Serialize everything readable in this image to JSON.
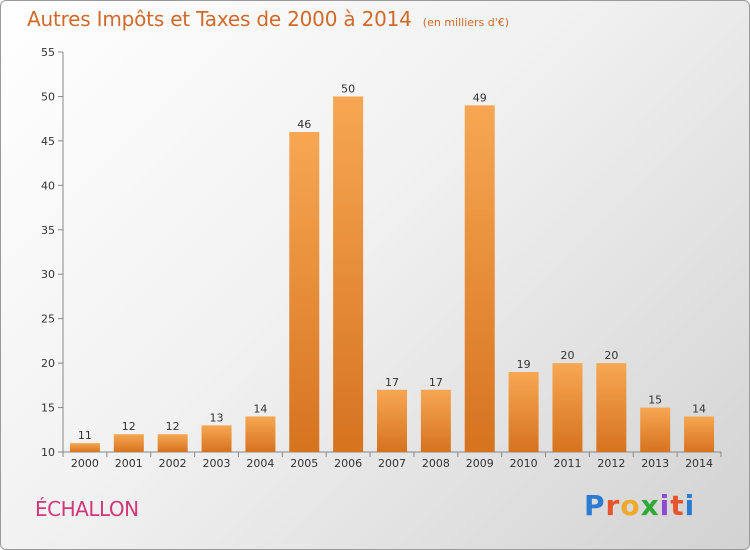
{
  "title": "Autres Impôts et Taxes de 2000 à 2014",
  "subtitle": "(en milliers d'€)",
  "commune": "ÉCHALLON",
  "logo": "Proxiti",
  "colors": {
    "title": "#d06a2a",
    "commune": "#d1387a",
    "bar_light": "#f7a753",
    "bar_dark": "#d6731f"
  },
  "chart_data": {
    "type": "bar",
    "title": "Autres Impôts et Taxes de 2000 à 2014",
    "subtitle": "(en milliers d'€)",
    "xlabel": "",
    "ylabel": "",
    "categories": [
      "2000",
      "2001",
      "2002",
      "2003",
      "2004",
      "2005",
      "2006",
      "2007",
      "2008",
      "2009",
      "2010",
      "2011",
      "2012",
      "2013",
      "2014"
    ],
    "values": [
      11,
      12,
      12,
      13,
      14,
      46,
      50,
      17,
      17,
      49,
      19,
      20,
      20,
      15,
      14
    ],
    "ylim": [
      10,
      55
    ],
    "yticks": [
      10,
      15,
      20,
      25,
      30,
      35,
      40,
      45,
      50,
      55
    ],
    "grid": false,
    "legend": "none"
  }
}
